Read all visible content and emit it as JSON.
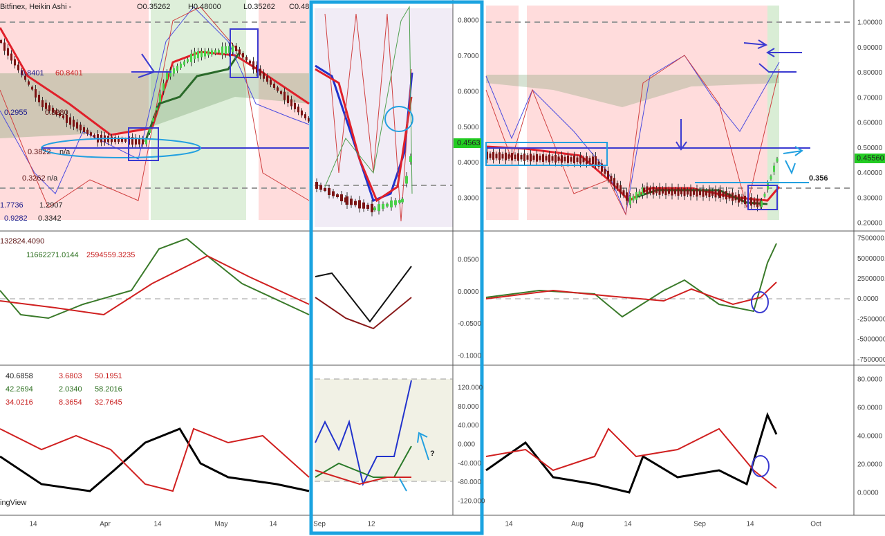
{
  "left": {
    "header": {
      "symbol": "Bitfinex, Heikin Ashi -",
      "ohlc": [
        "O0.35262",
        "H0.48000",
        "L0.35262",
        "C0.48"
      ]
    },
    "price_labels": [
      "0.8401",
      "60.8401",
      "0.2955",
      "0.3280",
      "0.3822",
      "n/a",
      "0.3262",
      "n/a",
      "1.7736",
      "1.2907",
      "0.9282",
      "0.3342"
    ],
    "volume_labels": [
      "132824.4090",
      "11662271.0144",
      "2594559.3235"
    ],
    "dmi_rows": [
      [
        "40.6858",
        "3.6803",
        "50.1951"
      ],
      [
        "42.2694",
        "2.0340",
        "58.2016"
      ],
      [
        "34.0216",
        "8.3654",
        "32.7645"
      ]
    ],
    "brand": "ingView",
    "x_axis": [
      "14",
      "Apr",
      "14",
      "May",
      "14"
    ]
  },
  "middle": {
    "price_axis": [
      "0.8000",
      "0.7000",
      "0.6000",
      "0.5000",
      "0.4000",
      "0.3000"
    ],
    "price_badge": "0.4563",
    "osc_axis": [
      "0.0500",
      "0.0000",
      "-0.0500",
      "-0.1000"
    ],
    "cci_axis": [
      "120.000",
      "80.000",
      "40.000",
      "0.000",
      "-40.000",
      "-80.000",
      "-120.000"
    ],
    "annotation": "?",
    "x_axis": [
      "Sep",
      "12"
    ]
  },
  "right": {
    "price_axis": [
      "1.00000",
      "0.90000",
      "0.80000",
      "0.70000",
      "0.60000",
      "0.50000",
      "0.40000",
      "0.30000",
      "0.20000"
    ],
    "price_badge": "0.45560",
    "annotation": "0.356",
    "volume_axis": [
      "7500000.0000",
      "5000000.0000",
      "2500000.0000",
      "0.0000",
      "-2500000.0000",
      "-5000000.0000",
      "-7500000.0000"
    ],
    "dmi_axis": [
      "80.0000",
      "60.0000",
      "40.0000",
      "20.0000",
      "0.0000"
    ],
    "x_axis": [
      "14",
      "Aug",
      "14",
      "Sep",
      "14",
      "Oct"
    ]
  }
}
